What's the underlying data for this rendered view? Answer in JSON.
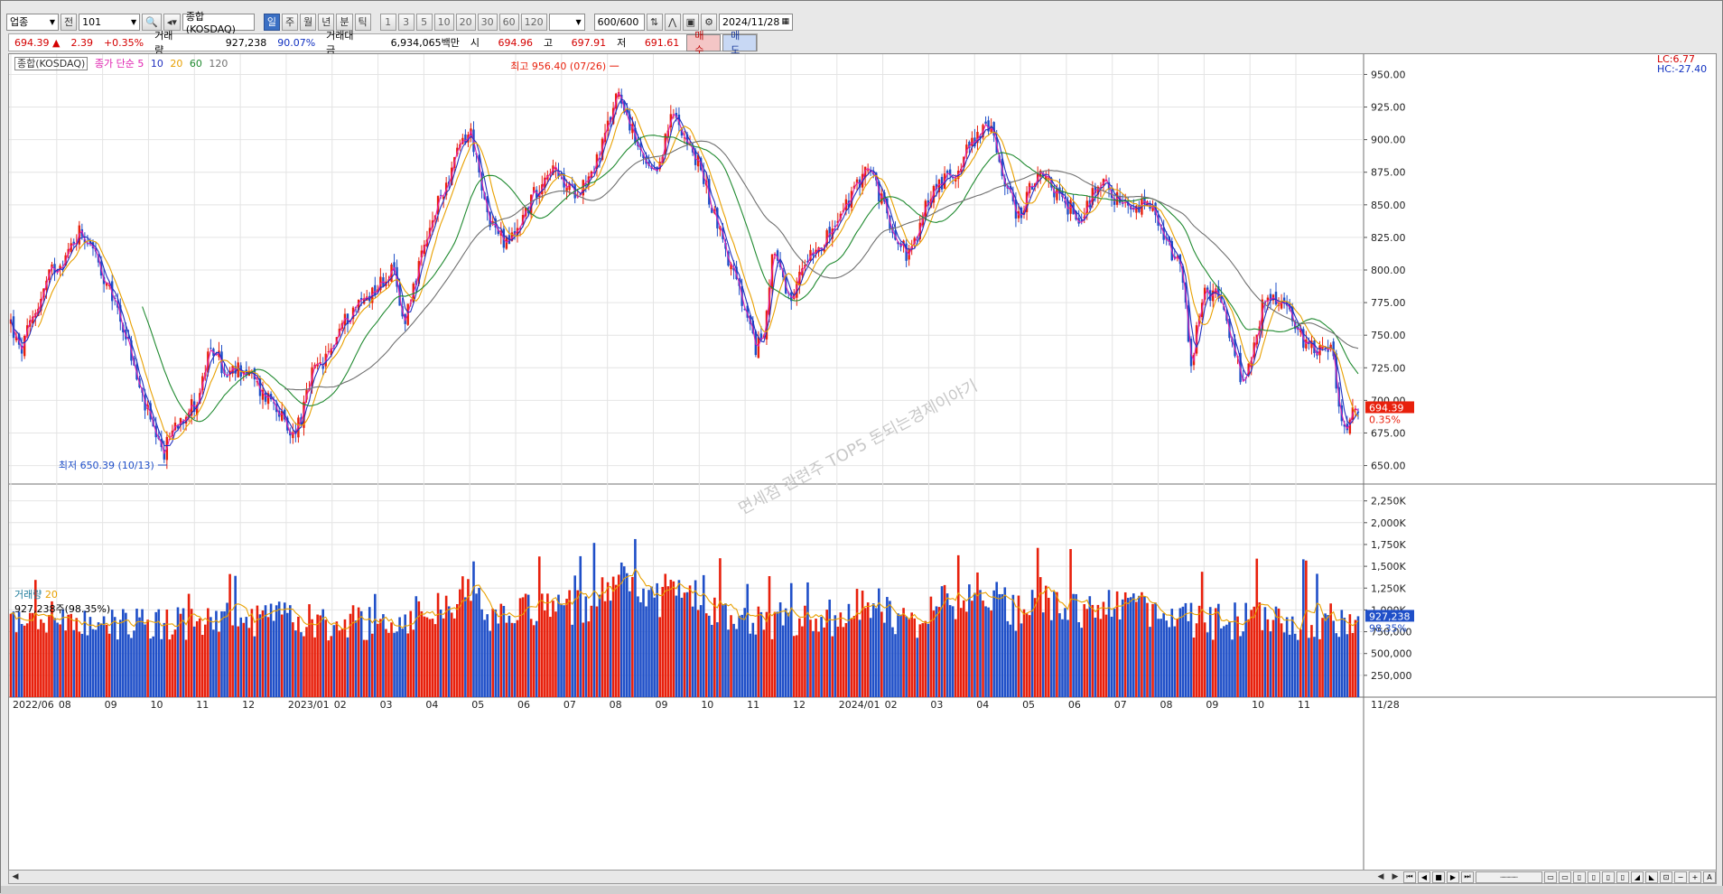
{
  "toolbar": {
    "market_type": "업종",
    "prev_label": "전",
    "code": "101",
    "name": "종합(KOSDAQ)",
    "periods": [
      "일",
      "주",
      "월",
      "년",
      "분",
      "틱"
    ],
    "active_period": "일",
    "intervals": [
      "1",
      "3",
      "5",
      "10",
      "20",
      "30",
      "60",
      "120"
    ],
    "count": "600/600",
    "date": "2024/11/28"
  },
  "quote": {
    "price": "694.39",
    "arrow": "▲",
    "change": "2.39",
    "change_pct": "+0.35%",
    "volume_label": "거래량",
    "volume": "927,238",
    "volume_pct": "90.07%",
    "amount_label": "거래대금",
    "amount": "6,934,065백만",
    "open_label": "시",
    "open": "694.96",
    "high_label": "고",
    "high": "697.91",
    "low_label": "저",
    "low": "691.61",
    "buy_label": "매수",
    "sell_label": "매도"
  },
  "chart_legend": {
    "name": "종합(KOSDAQ)",
    "ma_label": "종가 단순",
    "ma_periods": [
      "5",
      "10",
      "20",
      "60",
      "120"
    ],
    "volume_label": "거래량",
    "volume_ma": "20",
    "volume_value": "927,238주(98.35%)",
    "lc": "LC:6.77",
    "hc": "HC:-27.40",
    "max_annotation": "최고 956.40 (07/26)",
    "min_annotation": "최저 650.39 (10/13)",
    "watermark": "면세점 관련주 TOP5 돈되는경제이야기",
    "last_price_badge": "694.39",
    "last_pct_badge": "0.35%",
    "last_volume_badge": "927,238",
    "last_volume_pct_badge": "98.35%"
  },
  "colors": {
    "up": "#e8200c",
    "down": "#1f4fc8",
    "ma5": "#e020b0",
    "ma10": "#2030c0",
    "ma20": "#e8a000",
    "ma60": "#208a30",
    "ma120": "#707070"
  },
  "chart_data": {
    "type": "candlestick",
    "price_axis": {
      "range": [
        640,
        960
      ],
      "ticks": [
        "950.00",
        "925.00",
        "900.00",
        "875.00",
        "850.00",
        "825.00",
        "800.00",
        "775.00",
        "750.00",
        "725.00",
        "700.00",
        "675.00",
        "650.00"
      ]
    },
    "volume_axis": {
      "range": [
        0,
        2350
      ],
      "unit": "K",
      "ticks": [
        "2,250K",
        "2,000K",
        "1,750K",
        "1,500K",
        "1,250K",
        "1,000K",
        "750,000",
        "500,000",
        "250,000"
      ]
    },
    "x_labels": [
      "2022/06",
      "08",
      "09",
      "10",
      "11",
      "12",
      "2023/01",
      "02",
      "03",
      "04",
      "05",
      "06",
      "07",
      "08",
      "09",
      "10",
      "11",
      "12",
      "2024/01",
      "02",
      "03",
      "04",
      "05",
      "06",
      "07",
      "08",
      "09",
      "10",
      "11"
    ],
    "x_end_label": "11/28",
    "close_anchors": [
      [
        0,
        760
      ],
      [
        10,
        735
      ],
      [
        25,
        765
      ],
      [
        45,
        800
      ],
      [
        60,
        810
      ],
      [
        75,
        830
      ],
      [
        90,
        820
      ],
      [
        100,
        790
      ],
      [
        115,
        775
      ],
      [
        130,
        740
      ],
      [
        140,
        710
      ],
      [
        150,
        690
      ],
      [
        160,
        665
      ],
      [
        168,
        660
      ],
      [
        178,
        680
      ],
      [
        190,
        690
      ],
      [
        205,
        700
      ],
      [
        215,
        730
      ],
      [
        225,
        740
      ],
      [
        235,
        715
      ],
      [
        250,
        725
      ],
      [
        262,
        720
      ],
      [
        275,
        705
      ],
      [
        290,
        700
      ],
      [
        305,
        670
      ],
      [
        320,
        690
      ],
      [
        330,
        720
      ],
      [
        345,
        730
      ],
      [
        360,
        755
      ],
      [
        375,
        770
      ],
      [
        390,
        780
      ],
      [
        405,
        790
      ],
      [
        418,
        800
      ],
      [
        430,
        760
      ],
      [
        440,
        785
      ],
      [
        455,
        820
      ],
      [
        470,
        855
      ],
      [
        485,
        880
      ],
      [
        495,
        900
      ],
      [
        505,
        905
      ],
      [
        515,
        860
      ],
      [
        525,
        840
      ],
      [
        540,
        820
      ],
      [
        550,
        825
      ],
      [
        560,
        840
      ],
      [
        575,
        860
      ],
      [
        590,
        880
      ],
      [
        600,
        870
      ],
      [
        615,
        860
      ],
      [
        625,
        865
      ],
      [
        640,
        880
      ],
      [
        655,
        910
      ],
      [
        665,
        940
      ],
      [
        675,
        920
      ],
      [
        685,
        895
      ],
      [
        695,
        880
      ],
      [
        705,
        870
      ],
      [
        715,
        895
      ],
      [
        725,
        920
      ],
      [
        735,
        910
      ],
      [
        745,
        890
      ],
      [
        755,
        880
      ],
      [
        765,
        855
      ],
      [
        775,
        835
      ],
      [
        785,
        810
      ],
      [
        795,
        790
      ],
      [
        805,
        765
      ],
      [
        815,
        740
      ],
      [
        825,
        750
      ],
      [
        835,
        820
      ],
      [
        845,
        790
      ],
      [
        855,
        770
      ],
      [
        865,
        800
      ],
      [
        875,
        815
      ],
      [
        885,
        820
      ],
      [
        895,
        825
      ],
      [
        905,
        835
      ],
      [
        915,
        850
      ],
      [
        925,
        860
      ],
      [
        935,
        880
      ],
      [
        945,
        870
      ],
      [
        955,
        850
      ],
      [
        965,
        835
      ],
      [
        975,
        820
      ],
      [
        985,
        810
      ],
      [
        995,
        830
      ],
      [
        1005,
        855
      ],
      [
        1015,
        865
      ],
      [
        1025,
        870
      ],
      [
        1035,
        875
      ],
      [
        1045,
        890
      ],
      [
        1055,
        900
      ],
      [
        1065,
        910
      ],
      [
        1075,
        905
      ],
      [
        1085,
        880
      ],
      [
        1095,
        855
      ],
      [
        1105,
        840
      ],
      [
        1115,
        860
      ],
      [
        1125,
        870
      ],
      [
        1135,
        868
      ],
      [
        1145,
        860
      ],
      [
        1155,
        850
      ],
      [
        1165,
        845
      ],
      [
        1175,
        840
      ],
      [
        1185,
        860
      ],
      [
        1195,
        870
      ],
      [
        1205,
        860
      ],
      [
        1215,
        850
      ],
      [
        1225,
        845
      ],
      [
        1235,
        845
      ],
      [
        1245,
        855
      ],
      [
        1255,
        835
      ],
      [
        1265,
        820
      ],
      [
        1275,
        810
      ],
      [
        1285,
        790
      ],
      [
        1292,
        720
      ],
      [
        1300,
        760
      ],
      [
        1310,
        785
      ],
      [
        1320,
        780
      ],
      [
        1330,
        765
      ],
      [
        1340,
        740
      ],
      [
        1350,
        710
      ],
      [
        1360,
        730
      ],
      [
        1370,
        770
      ],
      [
        1380,
        780
      ],
      [
        1390,
        775
      ],
      [
        1400,
        770
      ],
      [
        1410,
        750
      ],
      [
        1420,
        745
      ],
      [
        1430,
        740
      ],
      [
        1440,
        745
      ],
      [
        1447,
        740
      ],
      [
        1455,
        695
      ],
      [
        1462,
        680
      ],
      [
        1470,
        688
      ],
      [
        1477,
        694.39
      ]
    ],
    "annotations": {
      "max": {
        "value": 956.4,
        "date": "07/26"
      },
      "min": {
        "value": 650.39,
        "date": "10/13"
      }
    },
    "last": {
      "close": 694.39,
      "change_pct": 0.35,
      "volume_k": 927.238
    }
  }
}
